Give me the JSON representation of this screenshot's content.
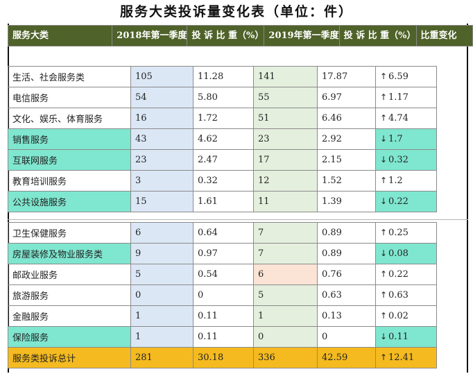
{
  "title": "服务大类投诉量变化表（单位：件）",
  "header": {
    "category": "服务大类",
    "q2018": "2018年第一季度",
    "share2018": "投 诉 比 重（%）",
    "q2019": "2019年第一季度",
    "share2019": "投 诉 比 重（%）",
    "change": "比重变化"
  },
  "rows_top": [
    {
      "category": "生活、社会服务类",
      "q2018": "105",
      "share2018": "11.28",
      "q2019": "141",
      "share2019": "17.87",
      "change": "6.59",
      "arrow": "↑",
      "direction": "up",
      "highlight": false
    },
    {
      "category": "电信服务",
      "q2018": "54",
      "share2018": "5.80",
      "q2019": "55",
      "share2019": "6.97",
      "change": "1.17",
      "arrow": "↑",
      "direction": "up",
      "highlight": false
    },
    {
      "category": "文化、娱乐、体育服务",
      "q2018": "16",
      "share2018": "1.72",
      "q2019": "51",
      "share2019": "6.46",
      "change": "4.74",
      "arrow": "↑",
      "direction": "up",
      "highlight": false
    },
    {
      "category": "销售服务",
      "q2018": "43",
      "share2018": "4.62",
      "q2019": "23",
      "share2019": "2.92",
      "change": "1.7",
      "arrow": "↓",
      "direction": "down",
      "highlight": true
    },
    {
      "category": "互联网服务",
      "q2018": "23",
      "share2018": "2.47",
      "q2019": "17",
      "share2019": "2.15",
      "change": "0.32",
      "arrow": "↓",
      "direction": "down",
      "highlight": true
    },
    {
      "category": "教育培训服务",
      "q2018": "3",
      "share2018": "0.32",
      "q2019": "12",
      "share2019": "1.52",
      "change": "1.2",
      "arrow": "↑",
      "direction": "up",
      "highlight": false
    },
    {
      "category": "公共设施服务",
      "q2018": "15",
      "share2018": "1.61",
      "q2019": "11",
      "share2019": "1.39",
      "change": "0.22",
      "arrow": "↓",
      "direction": "down",
      "highlight": true
    }
  ],
  "rows_bottom": [
    {
      "category": "卫生保健服务",
      "q2018": "6",
      "share2018": "0.64",
      "q2019": "7",
      "share2019": "0.89",
      "change": "0.25",
      "arrow": "↑",
      "direction": "up",
      "highlight": false
    },
    {
      "category": "房屋装修及物业服务类",
      "q2018": "9",
      "share2018": "0.97",
      "q2019": "7",
      "share2019": "0.89",
      "change": "0.08",
      "arrow": "↓",
      "direction": "down",
      "highlight": true
    },
    {
      "category": "邮政业服务",
      "q2018": "5",
      "share2018": "0.54",
      "q2019": "6",
      "share2019": "0.76",
      "change": "0.22",
      "arrow": "↑",
      "direction": "up",
      "highlight": false,
      "q2019_peach": true
    },
    {
      "category": "旅游服务",
      "q2018": "0",
      "share2018": "0",
      "q2019": "5",
      "share2019": "0.63",
      "change": "0.63",
      "arrow": "↑",
      "direction": "up",
      "highlight": false
    },
    {
      "category": "金融服务",
      "q2018": "1",
      "share2018": "0.11",
      "q2019": "1",
      "share2019": "0.13",
      "change": "0.02",
      "arrow": "↑",
      "direction": "up",
      "highlight": false
    },
    {
      "category": "保险服务",
      "q2018": "1",
      "share2018": "0.11",
      "q2019": "0",
      "share2019": "0",
      "change": "0.11",
      "arrow": "↓",
      "direction": "down",
      "highlight": true
    }
  ],
  "total": {
    "category": "服务类投诉总计",
    "q2018": "281",
    "share2018": "30.18",
    "q2019": "336",
    "share2019": "42.59",
    "change": "12.41",
    "arrow": "↑",
    "direction": "up"
  },
  "colors": {
    "header_bg": "#4f6229",
    "highlight_teal": "#7fe6cf",
    "total_gold": "#f4ba1f",
    "col2018_blue": "#dbe7f5",
    "col2019_green": "#e4efdd",
    "peach_cell": "#fbe4d6"
  }
}
